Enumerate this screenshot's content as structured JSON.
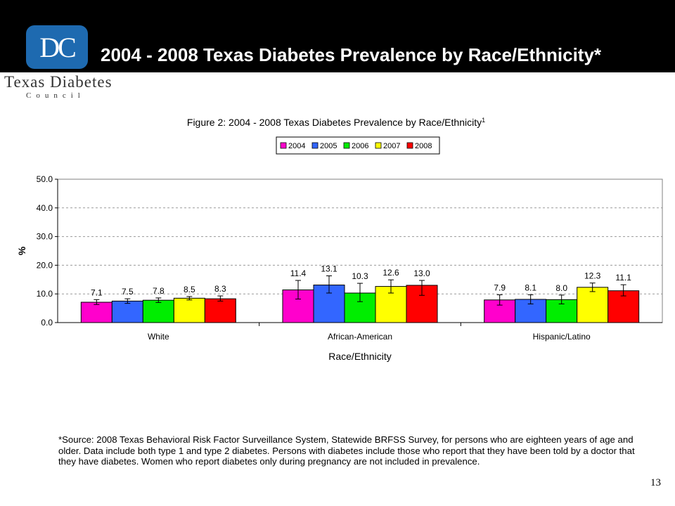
{
  "slide": {
    "title": "2004 - 2008 Texas Diabetes Prevalence by Race/Ethnicity*",
    "logo_text": "DC",
    "org_name": "Texas Diabetes",
    "org_sub": "Council",
    "page_number": "13",
    "footnote": "*Source:  2008 Texas Behavioral Risk Factor Surveillance System, Statewide BRFSS Survey, for persons who are eighteen years of age and older.  Data include both type 1 and type 2 diabetes. Persons with diabetes include those who report that they have been told by a doctor that they have diabetes. Women who report diabetes only during pregnancy are not included in prevalence."
  },
  "colors": {
    "header_background": "#000000",
    "logo_background": "#1e6ab0"
  },
  "chart_data": {
    "type": "bar",
    "title": "Figure 2: 2004 - 2008 Texas Diabetes Prevalence by Race/Ethnicity",
    "title_superscript": "1",
    "xlabel": "Race/Ethnicity",
    "ylabel": "%",
    "ylim": [
      0,
      50
    ],
    "yticks": [
      "0.0",
      "10.0",
      "20.0",
      "30.0",
      "40.0",
      "50.0"
    ],
    "grid": true,
    "legend_position": "top",
    "categories": [
      "White",
      "African-American",
      "Hispanic/Latino"
    ],
    "series": [
      {
        "name": "2004",
        "color": "#ff00cc",
        "values": [
          7.1,
          11.4,
          7.9
        ],
        "labels": [
          "7.1",
          "11.4",
          "7.9"
        ],
        "error_low": [
          6.3,
          8.2,
          6.1
        ],
        "error_high": [
          8.0,
          14.7,
          9.7
        ]
      },
      {
        "name": "2005",
        "color": "#3366ff",
        "values": [
          7.5,
          13.1,
          8.1
        ],
        "labels": [
          "7.5",
          "13.1",
          "8.1"
        ],
        "error_low": [
          6.7,
          10.3,
          6.5
        ],
        "error_high": [
          8.3,
          16.3,
          9.7
        ]
      },
      {
        "name": "2006",
        "color": "#00ee00",
        "values": [
          7.8,
          10.3,
          8.0
        ],
        "labels": [
          "7.8",
          "10.3",
          "8.0"
        ],
        "error_low": [
          7.0,
          7.3,
          6.5
        ],
        "error_high": [
          8.6,
          13.7,
          9.6
        ]
      },
      {
        "name": "2007",
        "color": "#ffff00",
        "values": [
          8.5,
          12.6,
          12.3
        ],
        "labels": [
          "8.5",
          "12.6",
          "12.3"
        ],
        "error_low": [
          7.9,
          10.3,
          10.8
        ],
        "error_high": [
          9.1,
          14.9,
          13.8
        ]
      },
      {
        "name": "2008",
        "color": "#ff0000",
        "values": [
          8.3,
          13.0,
          11.1
        ],
        "labels": [
          "8.3",
          "13.0",
          "11.1"
        ],
        "error_low": [
          7.5,
          9.5,
          9.3
        ],
        "error_high": [
          9.3,
          14.7,
          13.2
        ]
      }
    ]
  }
}
